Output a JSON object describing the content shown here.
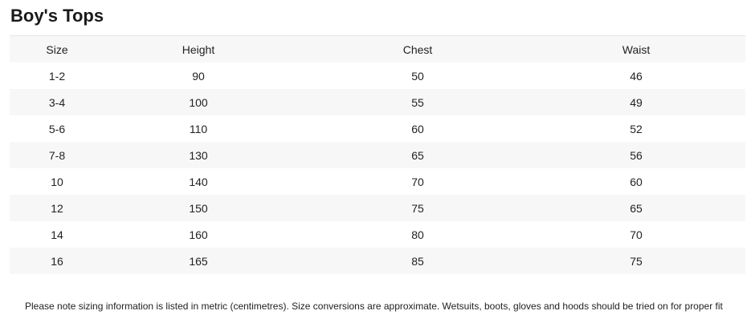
{
  "title": "Boy's Tops",
  "table": {
    "headers": [
      "Size",
      "Height",
      "Chest",
      "Waist"
    ],
    "rows": [
      [
        "1-2",
        "90",
        "50",
        "46"
      ],
      [
        "3-4",
        "100",
        "55",
        "49"
      ],
      [
        "5-6",
        "110",
        "60",
        "52"
      ],
      [
        "7-8",
        "130",
        "65",
        "56"
      ],
      [
        "10",
        "140",
        "70",
        "60"
      ],
      [
        "12",
        "150",
        "75",
        "65"
      ],
      [
        "14",
        "160",
        "80",
        "70"
      ],
      [
        "16",
        "165",
        "85",
        "75"
      ]
    ]
  },
  "note": "Please note sizing information is listed in metric (centimetres). Size conversions are approximate. Wetsuits, boots, gloves and hoods should be tried on for proper fit"
}
